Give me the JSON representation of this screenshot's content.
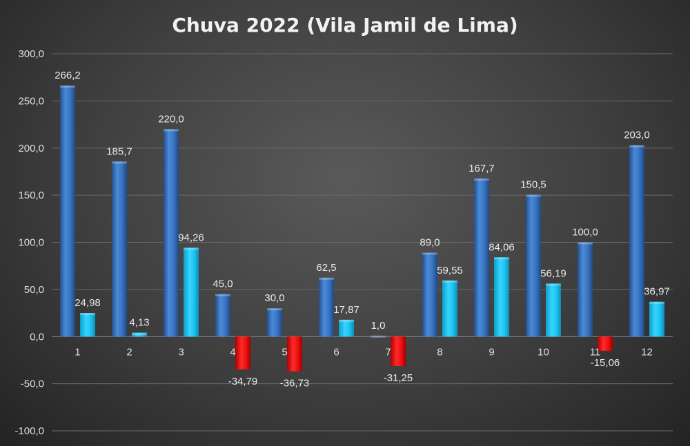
{
  "chart_data": {
    "type": "bar",
    "title": "Chuva 2022 (Vila Jamil de Lima)",
    "categories": [
      "1",
      "2",
      "3",
      "4",
      "5",
      "6",
      "7",
      "8",
      "9",
      "10",
      "11",
      "12"
    ],
    "series": [
      {
        "name": "",
        "values": [
          266.2,
          185.7,
          220.0,
          45.0,
          30.0,
          62.5,
          1.0,
          89.0,
          167.7,
          150.5,
          100.0,
          203.0
        ],
        "labels": [
          "266,2",
          "185,7",
          "220,0",
          "45,0",
          "30,0",
          "62,5",
          "1,0",
          "89,0",
          "167,7",
          "150,5",
          "100,0",
          "203,0"
        ]
      },
      {
        "name": "",
        "values": [
          24.98,
          4.13,
          94.26,
          -34.79,
          -36.73,
          17.87,
          -31.25,
          59.55,
          84.06,
          56.19,
          -15.06,
          36.97
        ],
        "labels": [
          "24,98",
          "4,13",
          "94,26",
          "-34,79",
          "-36,73",
          "17,87",
          "-31,25",
          "59,55",
          "84,06",
          "56,19",
          "-15,06",
          "36,97"
        ]
      }
    ],
    "ylim": [
      -100,
      300
    ],
    "yticks": [
      300,
      250,
      200,
      150,
      100,
      50,
      0,
      -50,
      -100
    ],
    "ytick_labels": [
      "300,0",
      "250,0",
      "200,0",
      "150,0",
      "100,0",
      "50,0",
      "0,0",
      "-50,0",
      "-100,0"
    ],
    "grid": true,
    "colors": {
      "series1": "#3a78c9",
      "series2_positive": "#1ec3f0",
      "series2_negative": "#ee1111"
    }
  }
}
